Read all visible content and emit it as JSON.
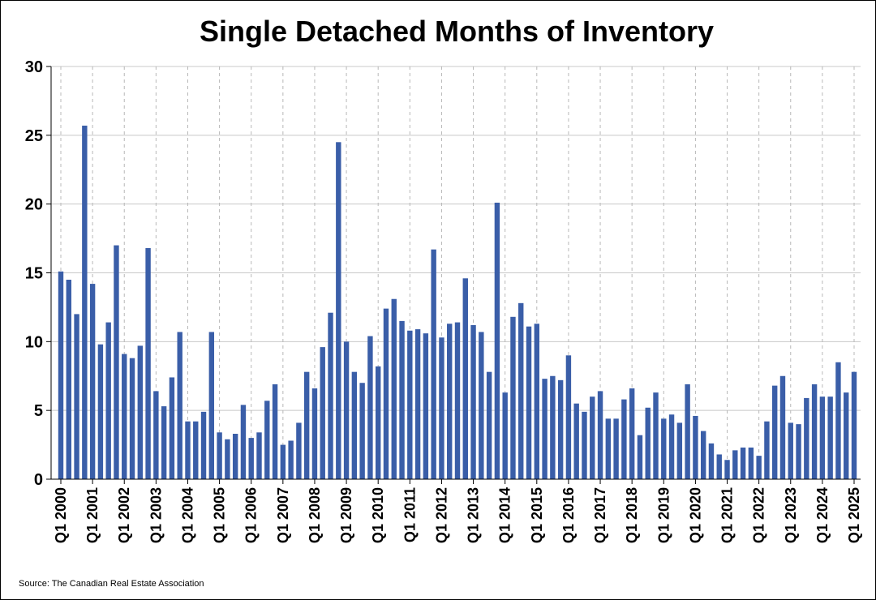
{
  "chart_data": {
    "type": "bar",
    "title": "Single Detached Months of Inventory",
    "source": "Source: The Canadian Real Estate Association",
    "xlabel": "",
    "ylabel": "",
    "ylim": [
      0,
      30
    ],
    "yticks": [
      0,
      5,
      10,
      15,
      20,
      25,
      30
    ],
    "bar_color": "#3a5ea8",
    "grid": true,
    "x_tick_labels": [
      "Q1 2000",
      "Q1 2001",
      "Q1 2002",
      "Q1 2003",
      "Q1 2004",
      "Q1 2005",
      "Q1 2006",
      "Q1 2007",
      "Q1 2008",
      "Q1 2009",
      "Q1 2010",
      "Q1 2011",
      "Q1 2012",
      "Q1 2013",
      "Q1 2014",
      "Q1 2015",
      "Q1 2016",
      "Q1 2017",
      "Q1 2018",
      "Q1 2019",
      "Q1 2020",
      "Q1 2021",
      "Q1 2022",
      "Q1 2023",
      "Q1 2024",
      "Q1 2025"
    ],
    "categories": [
      "Q1 2000",
      "Q2 2000",
      "Q3 2000",
      "Q4 2000",
      "Q1 2001",
      "Q2 2001",
      "Q3 2001",
      "Q4 2001",
      "Q1 2002",
      "Q2 2002",
      "Q3 2002",
      "Q4 2002",
      "Q1 2003",
      "Q2 2003",
      "Q3 2003",
      "Q4 2003",
      "Q1 2004",
      "Q2 2004",
      "Q3 2004",
      "Q4 2004",
      "Q1 2005",
      "Q2 2005",
      "Q3 2005",
      "Q4 2005",
      "Q1 2006",
      "Q2 2006",
      "Q3 2006",
      "Q4 2006",
      "Q1 2007",
      "Q2 2007",
      "Q3 2007",
      "Q4 2007",
      "Q1 2008",
      "Q2 2008",
      "Q3 2008",
      "Q4 2008",
      "Q1 2009",
      "Q2 2009",
      "Q3 2009",
      "Q4 2009",
      "Q1 2010",
      "Q2 2010",
      "Q3 2010",
      "Q4 2010",
      "Q1 2011",
      "Q2 2011",
      "Q3 2011",
      "Q4 2011",
      "Q1 2012",
      "Q2 2012",
      "Q3 2012",
      "Q4 2012",
      "Q1 2013",
      "Q2 2013",
      "Q3 2013",
      "Q4 2013",
      "Q1 2014",
      "Q2 2014",
      "Q3 2014",
      "Q4 2014",
      "Q1 2015",
      "Q2 2015",
      "Q3 2015",
      "Q4 2015",
      "Q1 2016",
      "Q2 2016",
      "Q3 2016",
      "Q4 2016",
      "Q1 2017",
      "Q2 2017",
      "Q3 2017",
      "Q4 2017",
      "Q1 2018",
      "Q2 2018",
      "Q3 2018",
      "Q4 2018",
      "Q1 2019",
      "Q2 2019",
      "Q3 2019",
      "Q4 2019",
      "Q1 2020",
      "Q2 2020",
      "Q3 2020",
      "Q4 2020",
      "Q1 2021",
      "Q2 2021",
      "Q3 2021",
      "Q4 2021",
      "Q1 2022",
      "Q2 2022",
      "Q3 2022",
      "Q4 2022",
      "Q1 2023",
      "Q2 2023",
      "Q3 2023",
      "Q4 2023",
      "Q1 2024",
      "Q2 2024",
      "Q3 2024",
      "Q4 2024",
      "Q1 2025"
    ],
    "values": [
      15.1,
      14.5,
      12.0,
      25.7,
      14.2,
      9.8,
      11.4,
      17.0,
      9.1,
      8.8,
      9.7,
      16.8,
      6.4,
      5.3,
      7.4,
      10.7,
      4.2,
      4.2,
      4.9,
      10.7,
      3.4,
      2.9,
      3.3,
      5.4,
      3.0,
      3.4,
      5.7,
      6.9,
      2.5,
      2.8,
      4.1,
      7.8,
      6.6,
      9.6,
      12.1,
      24.5,
      10.0,
      7.8,
      7.0,
      10.4,
      8.2,
      12.4,
      13.1,
      11.5,
      10.8,
      10.9,
      10.6,
      16.7,
      10.3,
      11.3,
      11.4,
      14.6,
      11.2,
      10.7,
      7.8,
      20.1,
      6.3,
      11.8,
      12.8,
      11.1,
      11.3,
      7.3,
      7.5,
      7.2,
      9.0,
      5.5,
      4.9,
      6.0,
      6.4,
      4.4,
      4.4,
      5.8,
      6.6,
      3.2,
      5.2,
      6.3,
      4.4,
      4.7,
      4.1,
      6.9,
      4.6,
      3.5,
      2.6,
      1.8,
      1.4,
      2.1,
      2.3,
      2.3,
      1.7,
      4.2,
      6.8,
      7.5,
      4.1,
      4.0,
      5.9,
      6.9,
      6.0,
      6.0,
      8.5,
      6.3,
      7.8
    ]
  }
}
